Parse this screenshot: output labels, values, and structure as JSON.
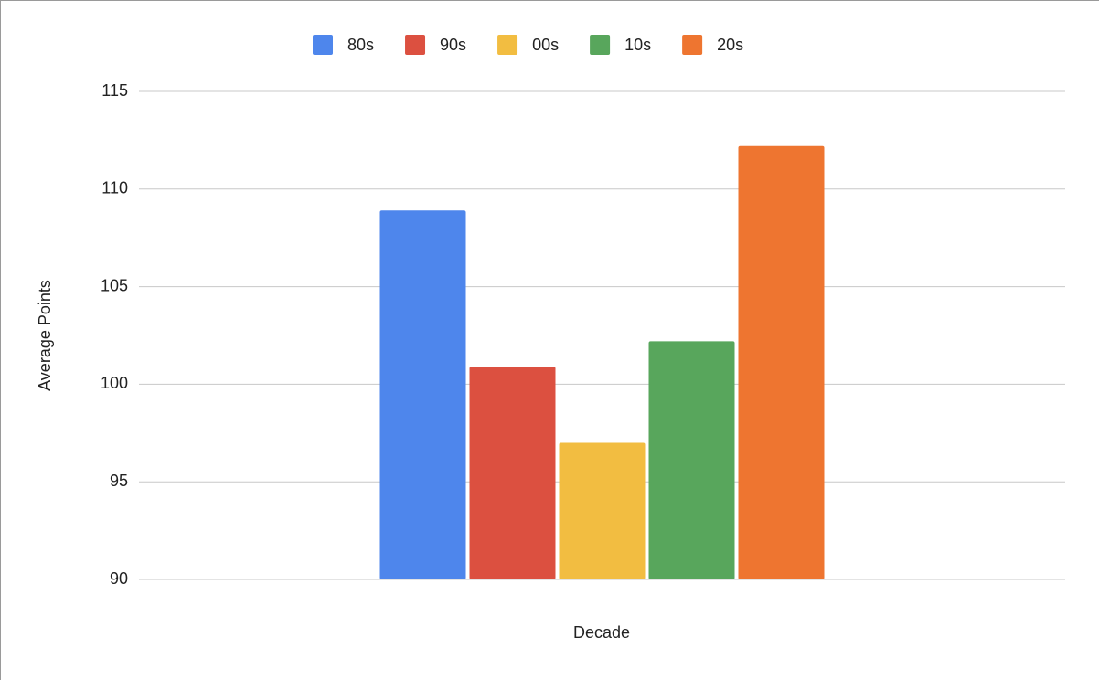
{
  "chart_data": {
    "type": "bar",
    "xlabel": "Decade",
    "ylabel": "Average Points",
    "categories": [
      null
    ],
    "series": [
      {
        "name": "80s",
        "color": "#4e86ec",
        "values": [
          108.9
        ]
      },
      {
        "name": "90s",
        "color": "#dc5040",
        "values": [
          100.9
        ]
      },
      {
        "name": "00s",
        "color": "#f2bd41",
        "values": [
          97.0
        ]
      },
      {
        "name": "10s",
        "color": "#58a65c",
        "values": [
          102.2
        ]
      },
      {
        "name": "20s",
        "color": "#ee7530",
        "values": [
          112.2
        ]
      }
    ],
    "ylim": [
      90,
      115
    ],
    "yticks": [
      90,
      95,
      100,
      105,
      110,
      115
    ],
    "grid": true,
    "legend": "top"
  }
}
